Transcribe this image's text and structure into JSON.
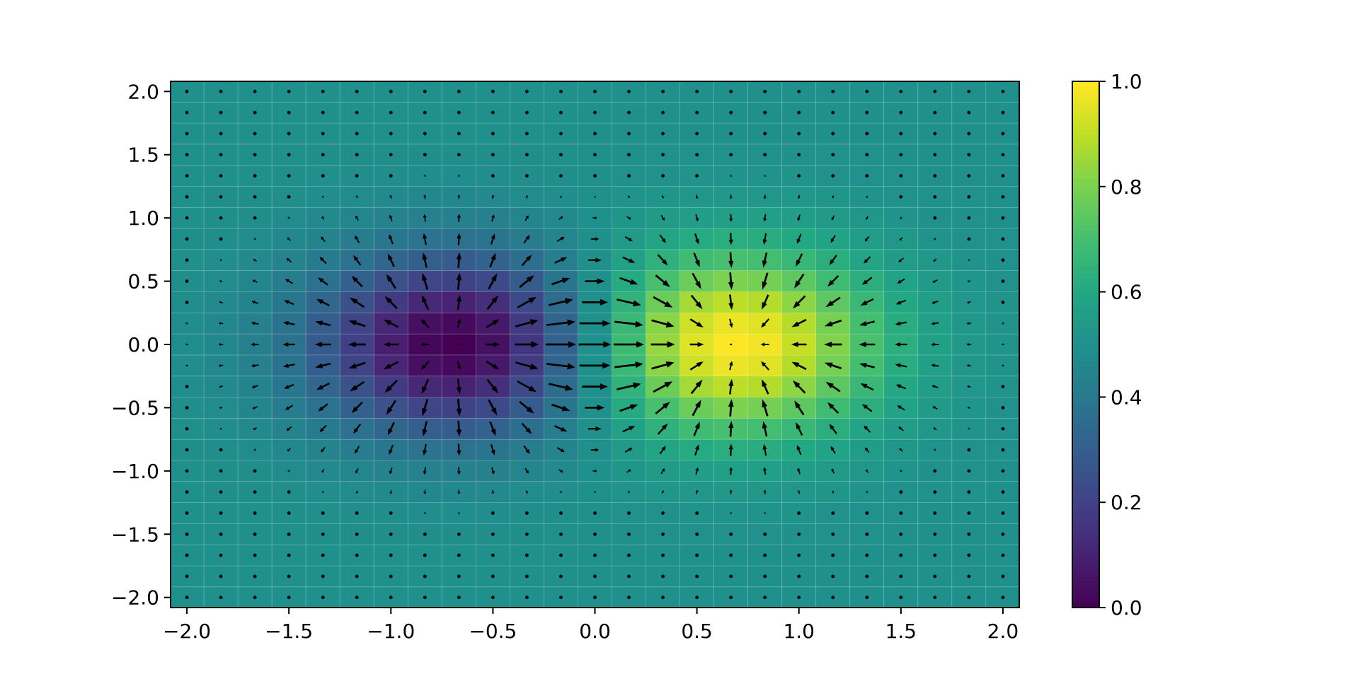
{
  "chart_data": {
    "type": "heatmap",
    "subtype": "pcolormesh with quiver vector field",
    "title": "",
    "xlabel": "",
    "ylabel": "",
    "xlim": [
      -2.08,
      2.08
    ],
    "ylim": [
      -2.08,
      2.08
    ],
    "grid_size": [
      25,
      25
    ],
    "x_range": [
      -2.0,
      2.0
    ],
    "y_range": [
      -2.0,
      2.0
    ],
    "scalar_field": {
      "description_formula": "normalized exp(-((x-0.667)^2+y^2)/0.5) - exp(-((x+0.667)^2+y^2)/0.5)",
      "min_center": [
        -0.667,
        0.0
      ],
      "max_center": [
        0.667,
        0.0
      ],
      "value_range": [
        0.0,
        1.0
      ]
    },
    "vector_field": "gradient of scalar field (arrows point from low to high)",
    "colormap": "viridis",
    "colorbar": {
      "vmin": 0.0,
      "vmax": 1.0,
      "ticks": [
        "0.0",
        "0.2",
        "0.4",
        "0.6",
        "0.8",
        "1.0"
      ],
      "tick_values": [
        0.0,
        0.2,
        0.4,
        0.6,
        0.8,
        1.0
      ]
    },
    "xticks": [
      "−2.0",
      "−1.5",
      "−1.0",
      "−0.5",
      "0.0",
      "0.5",
      "1.0",
      "1.5",
      "2.0"
    ],
    "xtick_values": [
      -2.0,
      -1.5,
      -1.0,
      -0.5,
      0.0,
      0.5,
      1.0,
      1.5,
      2.0
    ],
    "yticks": [
      "−2.0",
      "−1.5",
      "−1.0",
      "−0.5",
      "0.0",
      "0.5",
      "1.0",
      "1.5",
      "2.0"
    ],
    "ytick_values": [
      -2.0,
      -1.5,
      -1.0,
      -0.5,
      0.0,
      0.5,
      1.0,
      1.5,
      2.0
    ],
    "arrow_color": "#000000",
    "grid_line_color": "#ffffff",
    "axes_color": "#000000"
  }
}
